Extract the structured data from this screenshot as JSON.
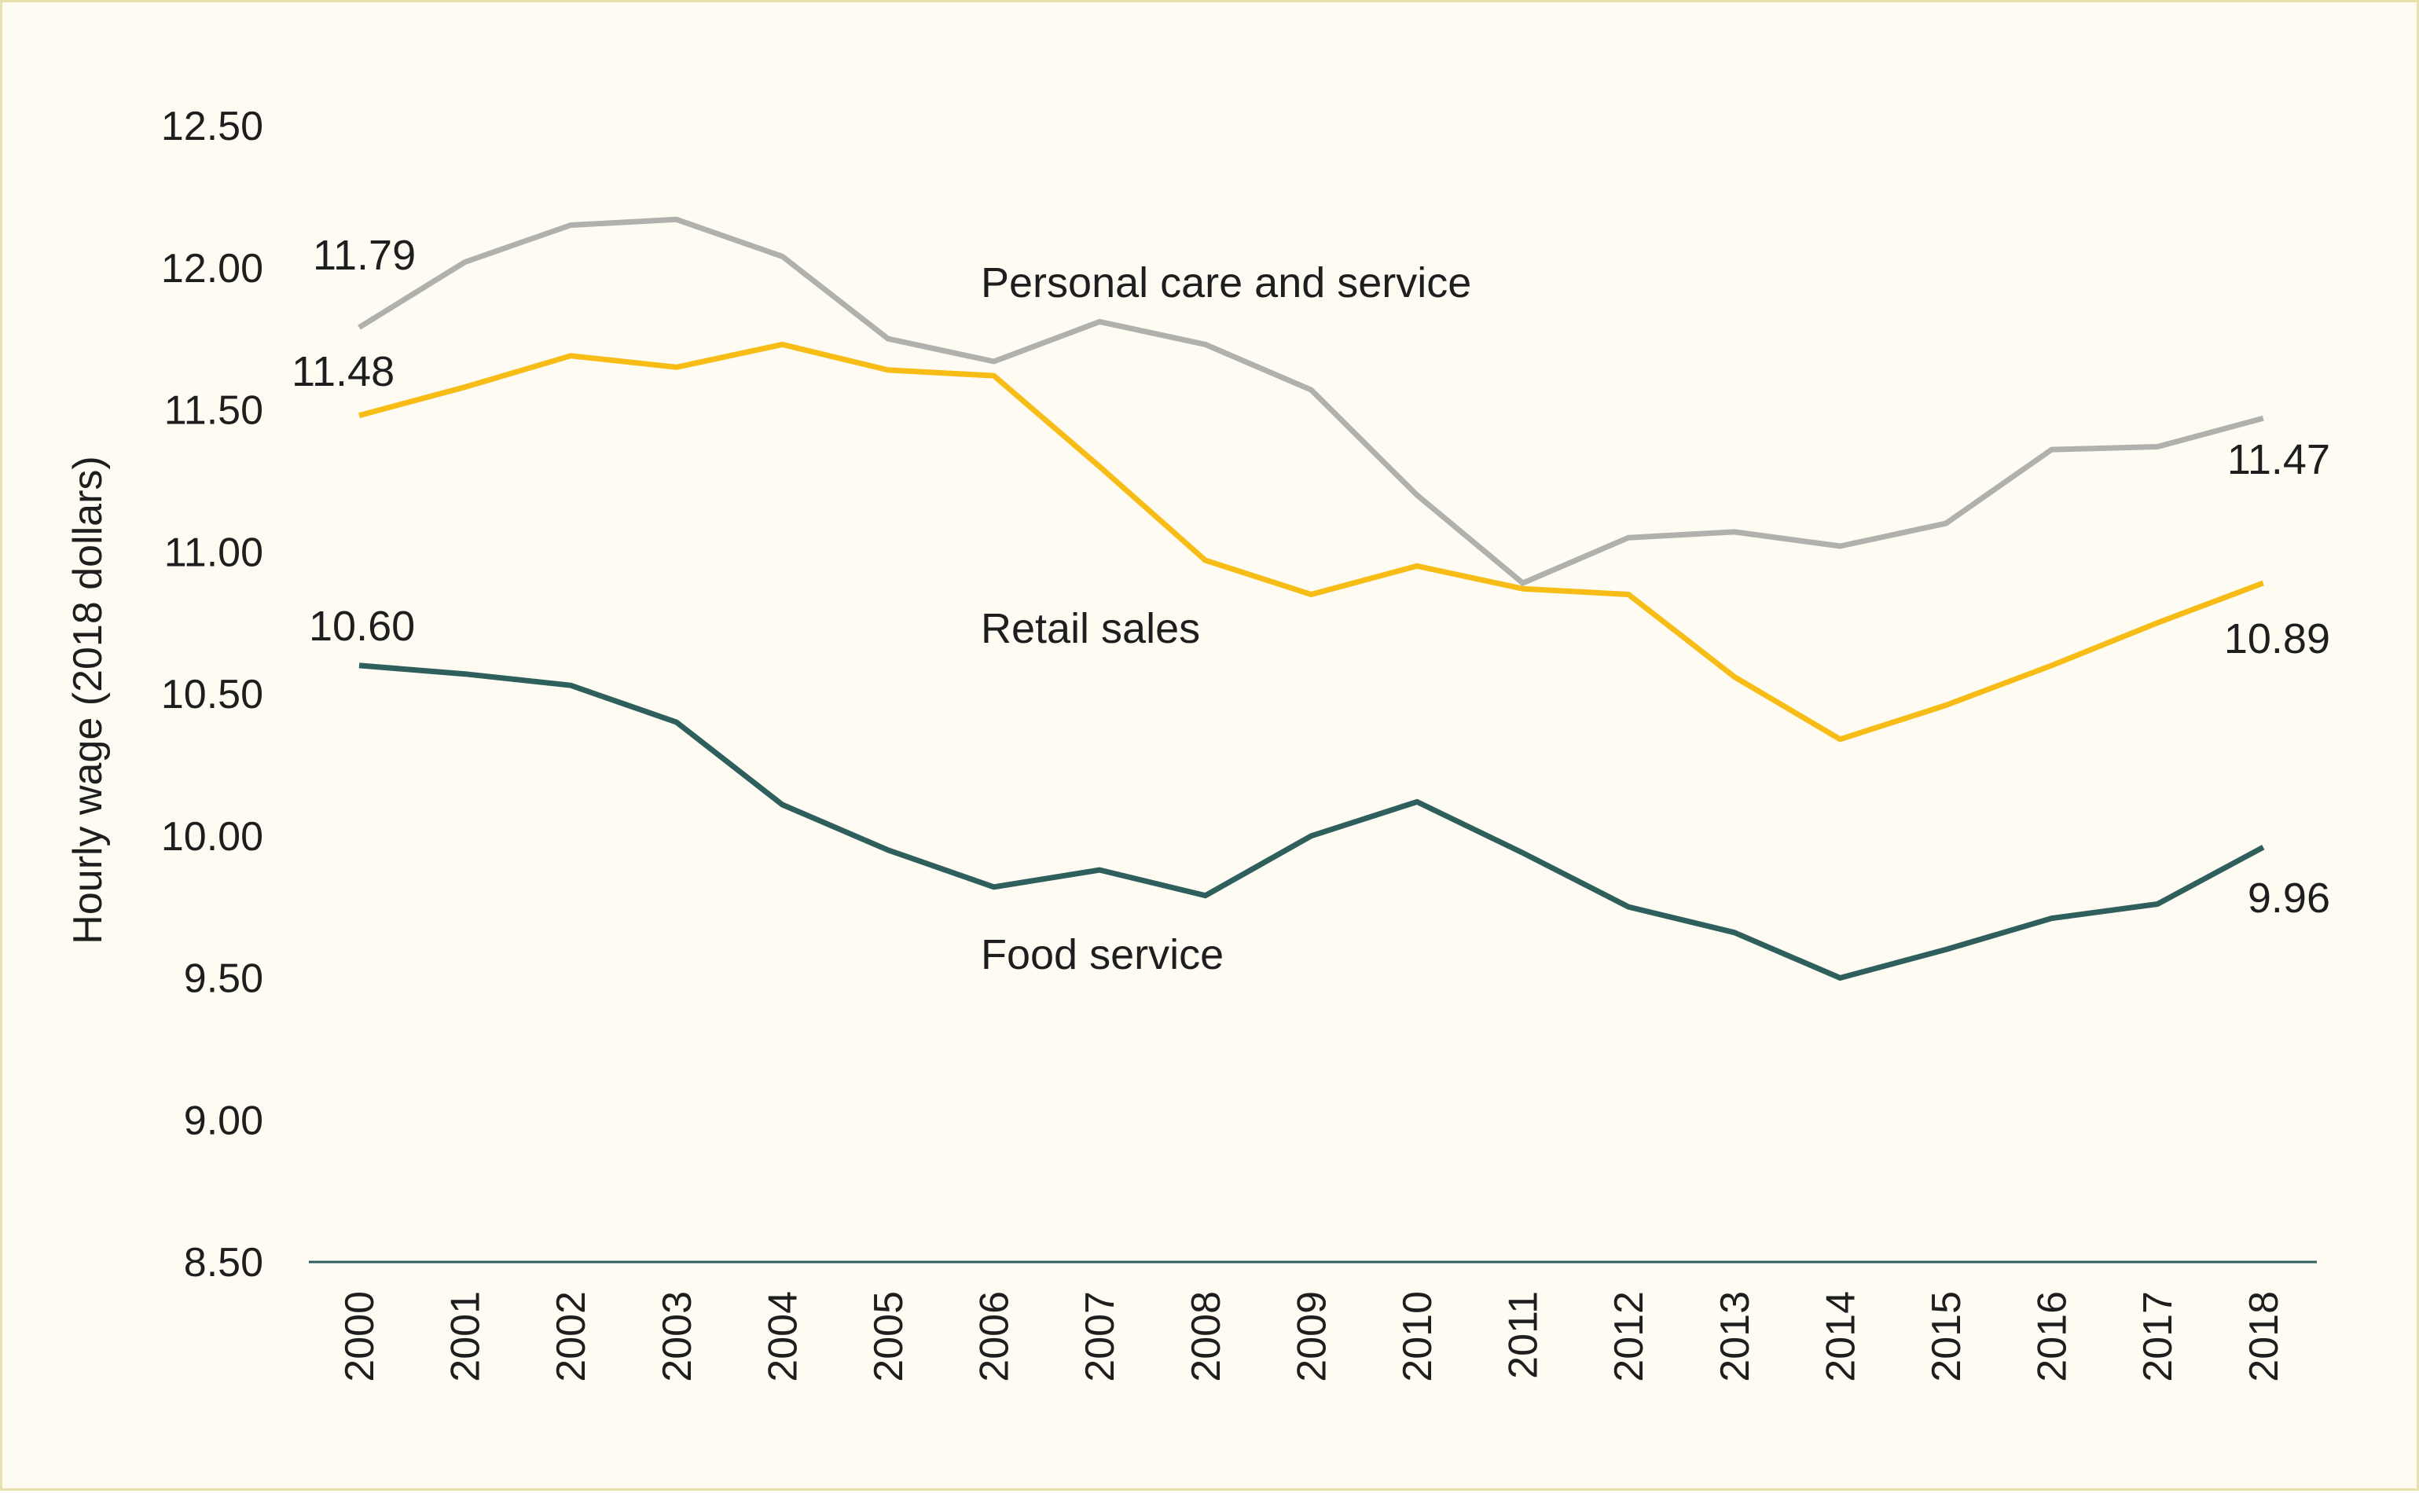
{
  "chart_data": {
    "type": "line",
    "title": "",
    "xlabel": "",
    "ylabel": "Hourly wage (2018 dollars)",
    "ylim": [
      8.5,
      12.5
    ],
    "yticks": [
      "8.50",
      "9.00",
      "9.50",
      "10.00",
      "10.50",
      "11.00",
      "11.50",
      "12.00",
      "12.50"
    ],
    "categories": [
      "2000",
      "2001",
      "2002",
      "2003",
      "2004",
      "2005",
      "2006",
      "2007",
      "2008",
      "2009",
      "2010",
      "2011",
      "2012",
      "2013",
      "2014",
      "2015",
      "2016",
      "2017",
      "2018"
    ],
    "grid": false,
    "series": [
      {
        "name": "Personal care and service",
        "color": "#b0b0ac",
        "values": [
          11.79,
          12.02,
          12.15,
          12.17,
          12.04,
          11.75,
          11.67,
          11.81,
          11.73,
          11.57,
          11.2,
          10.89,
          11.05,
          11.07,
          11.02,
          11.1,
          11.36,
          11.37,
          11.47
        ],
        "start_label": "11.79",
        "end_label": "11.47"
      },
      {
        "name": "Retail sales",
        "color": "#f7bd16",
        "values": [
          11.48,
          11.58,
          11.69,
          11.65,
          11.73,
          11.64,
          11.62,
          11.3,
          10.97,
          10.85,
          10.95,
          10.87,
          10.85,
          10.56,
          10.34,
          10.46,
          10.6,
          10.75,
          10.89
        ],
        "start_label": "11.48",
        "end_label": "10.89"
      },
      {
        "name": "Food service",
        "color": "#2e5f5c",
        "values": [
          10.6,
          10.57,
          10.53,
          10.4,
          10.11,
          9.95,
          9.82,
          9.88,
          9.79,
          10.0,
          10.12,
          9.94,
          9.75,
          9.66,
          9.5,
          9.6,
          9.71,
          9.76,
          9.96
        ],
        "start_label": "10.60",
        "end_label": "9.96"
      }
    ]
  }
}
